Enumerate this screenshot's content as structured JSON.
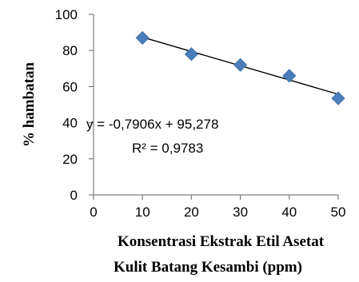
{
  "chart_data": {
    "type": "scatter",
    "points": [
      {
        "x": 10,
        "y": 87
      },
      {
        "x": 20,
        "y": 78
      },
      {
        "x": 30,
        "y": 72
      },
      {
        "x": 40,
        "y": 66
      },
      {
        "x": 50,
        "y": 53.5
      }
    ],
    "trendline": {
      "slope": -0.7906,
      "intercept": 95.278
    },
    "equation": "y = -0,7906x + 95,278",
    "r_squared": "R² = 0,9783",
    "xlabel_line1": "Konsentrasi Ekstrak Etil Asetat",
    "xlabel_line2": "Kulit Batang Kesambi (ppm)",
    "ylabel": "% hambatan",
    "xlim": [
      0,
      50
    ],
    "ylim": [
      0,
      100
    ],
    "xticks": [
      0,
      10,
      20,
      30,
      40,
      50
    ],
    "yticks": [
      0,
      20,
      40,
      60,
      80,
      100
    ],
    "marker_color": "#4a7ebb",
    "grid": false
  }
}
